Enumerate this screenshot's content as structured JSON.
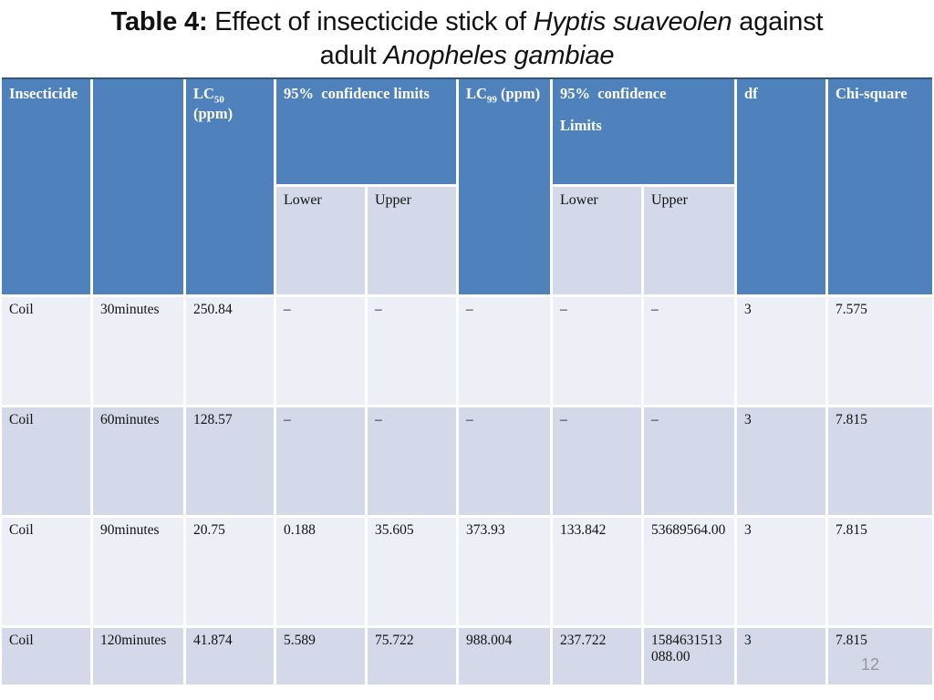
{
  "title": {
    "line1_bold": "Table 4:",
    "line1_normal": " Effect of insecticide stick of ",
    "line1_italic": "Hyptis suaveolen",
    "line1_tail": " against",
    "line2_normal": "adult ",
    "line2_italic": "Anopheles gambiae"
  },
  "colors": {
    "header_blue": "#4f81bd",
    "band_dark": "#d3d9e8",
    "band_light": "#edeff6",
    "header_text": "#ffffff",
    "top_border": "#2e5488"
  },
  "table": {
    "headers": {
      "insecticide": "Insecticide",
      "blank": "",
      "lc50_prefix": "LC",
      "lc50_sub": "50",
      "lc50_suffix": " (ppm)",
      "conf95_limits": "95%  confidence limits",
      "lc99_prefix": "LC",
      "lc99_sub": "99",
      "lc99_suffix": " (ppm)",
      "conf95_line1": "95%  confidence",
      "conf95_line2": "Limits",
      "lower": "Lower",
      "upper": "Upper",
      "df": "df",
      "chi_square": "Chi-square"
    },
    "rows": [
      {
        "cells": [
          "Coil",
          "30minutes",
          "250.84",
          "–",
          "–",
          "–",
          "–",
          "–",
          "3",
          "7.575"
        ]
      },
      {
        "cells": [
          "Coil",
          "60minutes",
          "128.57",
          "–",
          "–",
          "–",
          "–",
          "–",
          "3",
          "7.815"
        ]
      },
      {
        "cells": [
          "Coil",
          "90minutes",
          "20.75",
          "0.188",
          "35.605",
          "373.93",
          "133.842",
          "53689564.00",
          "3",
          "7.815"
        ]
      },
      {
        "cells": [
          "Coil",
          "120minutes",
          "41.874",
          "5.589",
          "75.722",
          "988.004",
          "237.722",
          "1584631513088.00",
          "3",
          "7.815"
        ]
      }
    ]
  },
  "page_number": "12"
}
